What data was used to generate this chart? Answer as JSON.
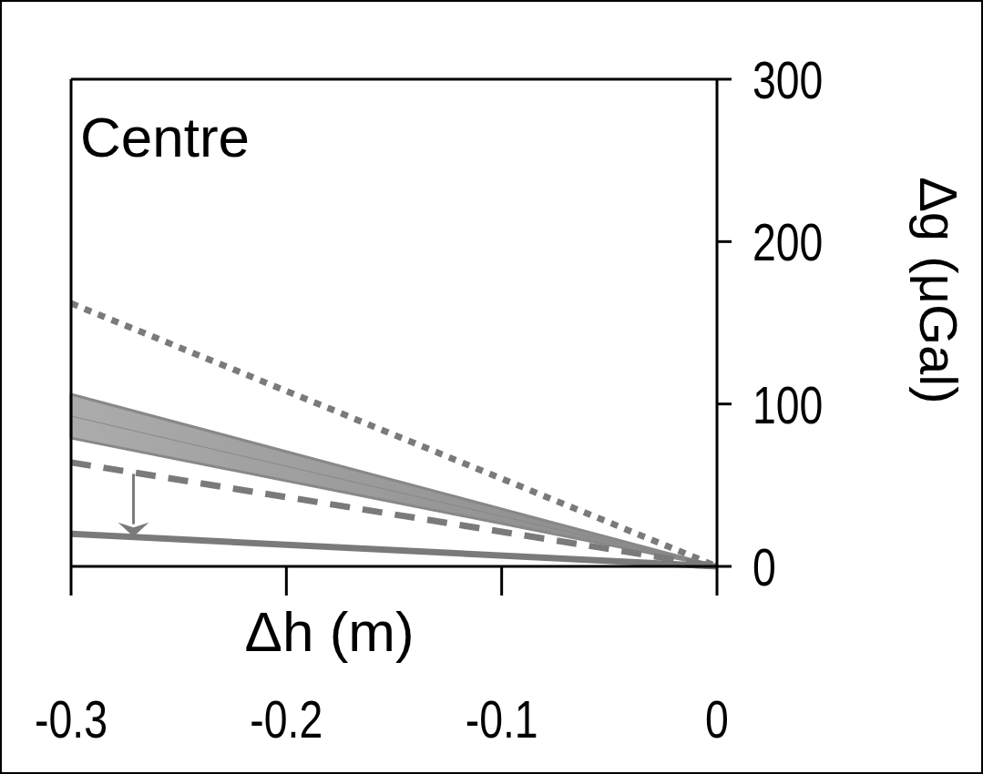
{
  "chart_data": {
    "type": "line",
    "title": "Centre",
    "xlabel": "Δh (m)",
    "ylabel": "Δg (μGal)",
    "x": [
      -0.3,
      0
    ],
    "series": [
      {
        "color": "#7a7a7a",
        "values": [
          162,
          0
        ],
        "line_style": "dotted"
      },
      {
        "color": "#888888",
        "values": [
          92.5,
          0
        ],
        "lower": [
          79,
          0
        ],
        "upper": [
          106,
          0
        ],
        "line_style": "solid"
      },
      {
        "color": "#7a7a7a",
        "values": [
          64,
          0
        ],
        "line_style": "dashed"
      },
      {
        "color": "#7a7a7a",
        "values": [
          20,
          0
        ],
        "line_style": "solid"
      }
    ],
    "xlim": [
      -0.3,
      0
    ],
    "xticks": [
      -0.3,
      -0.2,
      -0.1,
      0
    ],
    "ylim": [
      0,
      300
    ],
    "yticks": [
      0,
      100,
      200,
      300
    ],
    "grid": false,
    "marker": "none"
  }
}
